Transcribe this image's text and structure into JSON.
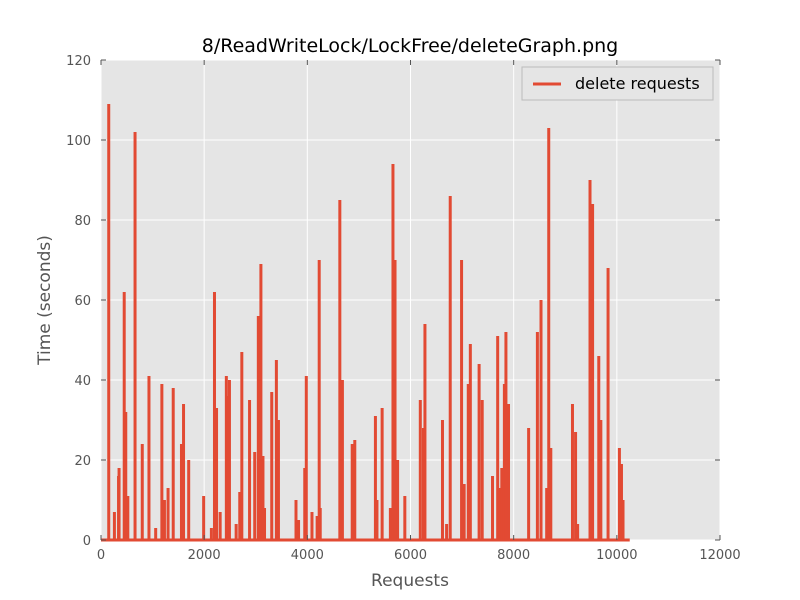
{
  "chart_data": {
    "type": "line",
    "title": "8/ReadWriteLock/LockFree/deleteGraph.png",
    "xlabel": "Requests",
    "ylabel": "Time (seconds)",
    "xlim": [
      0,
      12000
    ],
    "ylim": [
      0,
      120
    ],
    "xticks": [
      0,
      2000,
      4000,
      6000,
      8000,
      10000,
      12000
    ],
    "yticks": [
      0,
      20,
      40,
      60,
      80,
      100,
      120
    ],
    "grid": true,
    "legend_position": "top-right",
    "background_color": "#e5e5e5",
    "series": [
      {
        "name": "delete requests",
        "color": "#e24a33",
        "baseline_until": 10250,
        "spikes": [
          [
            150,
            109
          ],
          [
            260,
            7
          ],
          [
            340,
            16
          ],
          [
            350,
            18
          ],
          [
            450,
            62
          ],
          [
            480,
            32
          ],
          [
            520,
            11
          ],
          [
            660,
            102
          ],
          [
            800,
            24
          ],
          [
            930,
            41
          ],
          [
            1060,
            3
          ],
          [
            1180,
            39
          ],
          [
            1230,
            10
          ],
          [
            1300,
            13
          ],
          [
            1400,
            38
          ],
          [
            1560,
            24
          ],
          [
            1600,
            34
          ],
          [
            1700,
            20
          ],
          [
            1990,
            11
          ],
          [
            2140,
            3
          ],
          [
            2200,
            62
          ],
          [
            2240,
            33
          ],
          [
            2310,
            7
          ],
          [
            2430,
            41
          ],
          [
            2470,
            36
          ],
          [
            2490,
            40
          ],
          [
            2620,
            4
          ],
          [
            2690,
            12
          ],
          [
            2730,
            47
          ],
          [
            2880,
            35
          ],
          [
            2980,
            22
          ],
          [
            3050,
            56
          ],
          [
            3100,
            69
          ],
          [
            3140,
            21
          ],
          [
            3170,
            8
          ],
          [
            3310,
            37
          ],
          [
            3400,
            45
          ],
          [
            3440,
            30
          ],
          [
            3780,
            10
          ],
          [
            3830,
            5
          ],
          [
            3950,
            18
          ],
          [
            3980,
            41
          ],
          [
            4090,
            7
          ],
          [
            4190,
            6
          ],
          [
            4230,
            70
          ],
          [
            4250,
            8
          ],
          [
            4630,
            85
          ],
          [
            4680,
            40
          ],
          [
            4870,
            24
          ],
          [
            4920,
            25
          ],
          [
            5320,
            31
          ],
          [
            5350,
            10
          ],
          [
            5450,
            33
          ],
          [
            5610,
            8
          ],
          [
            5660,
            94
          ],
          [
            5700,
            70
          ],
          [
            5750,
            20
          ],
          [
            5890,
            11
          ],
          [
            6190,
            35
          ],
          [
            6250,
            28
          ],
          [
            6280,
            54
          ],
          [
            6620,
            30
          ],
          [
            6700,
            4
          ],
          [
            6770,
            86
          ],
          [
            6990,
            70
          ],
          [
            7040,
            14
          ],
          [
            7120,
            39
          ],
          [
            7160,
            49
          ],
          [
            7330,
            44
          ],
          [
            7390,
            35
          ],
          [
            7590,
            16
          ],
          [
            7690,
            51
          ],
          [
            7740,
            13
          ],
          [
            7770,
            18
          ],
          [
            7820,
            39
          ],
          [
            7850,
            52
          ],
          [
            7900,
            34
          ],
          [
            8290,
            28
          ],
          [
            8460,
            52
          ],
          [
            8530,
            60
          ],
          [
            8640,
            13
          ],
          [
            8680,
            103
          ],
          [
            8720,
            23
          ],
          [
            9140,
            34
          ],
          [
            9200,
            27
          ],
          [
            9240,
            4
          ],
          [
            9480,
            90
          ],
          [
            9530,
            84
          ],
          [
            9650,
            46
          ],
          [
            9690,
            30
          ],
          [
            9830,
            68
          ],
          [
            10050,
            23
          ],
          [
            10090,
            19
          ],
          [
            10120,
            10
          ]
        ]
      }
    ]
  }
}
